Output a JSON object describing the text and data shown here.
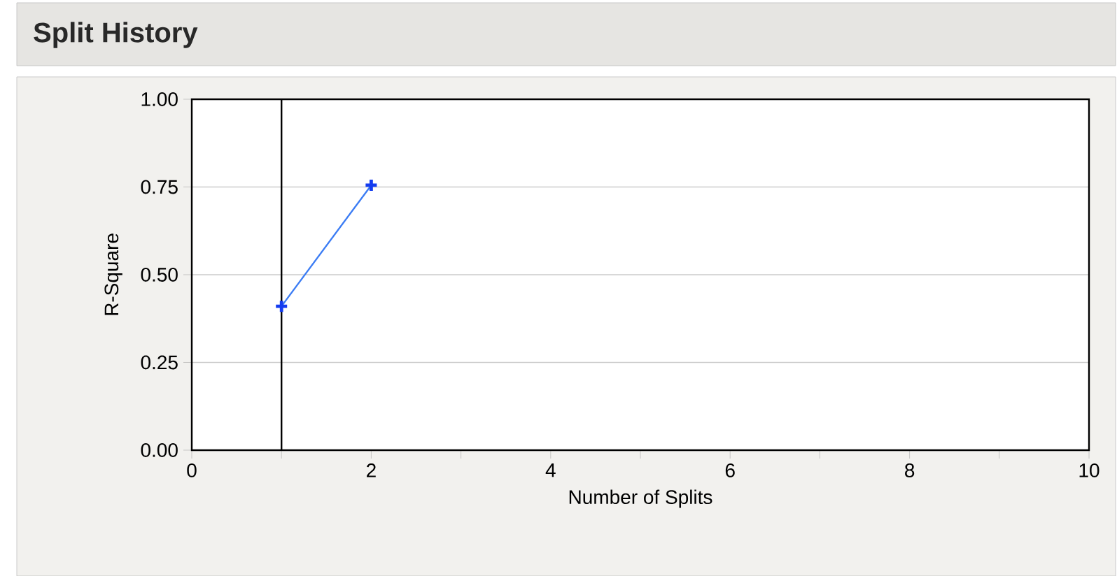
{
  "chart_data": {
    "type": "line",
    "title": "Split History",
    "xlabel": "Number of Splits",
    "ylabel": "R-Square",
    "x": [
      1,
      2
    ],
    "series": [
      {
        "color": "#3b7cf4",
        "values": [
          0.41,
          0.755
        ]
      }
    ],
    "xlim": [
      0,
      10
    ],
    "xticks": [
      0,
      {
        "value": 1,
        "label": null
      },
      2,
      {
        "value": 3,
        "label": null
      },
      4,
      {
        "value": 5,
        "label": null
      },
      6,
      {
        "value": 7,
        "label": null
      },
      8,
      {
        "value": 9,
        "label": null
      },
      10
    ],
    "ylim": [
      0,
      1
    ],
    "yticks": [
      {
        "value": 0,
        "label": "0.00"
      },
      {
        "value": 0.25,
        "label": "0.25"
      },
      {
        "value": 0.5,
        "label": "0.50"
      },
      {
        "value": 0.75,
        "label": "0.75"
      },
      {
        "value": 1,
        "label": "1.00"
      }
    ],
    "ref_lines": [
      {
        "axis": "x",
        "value": 1,
        "color": "#000000"
      }
    ],
    "grid": "y",
    "marker": "cross",
    "line_style": "solid"
  }
}
